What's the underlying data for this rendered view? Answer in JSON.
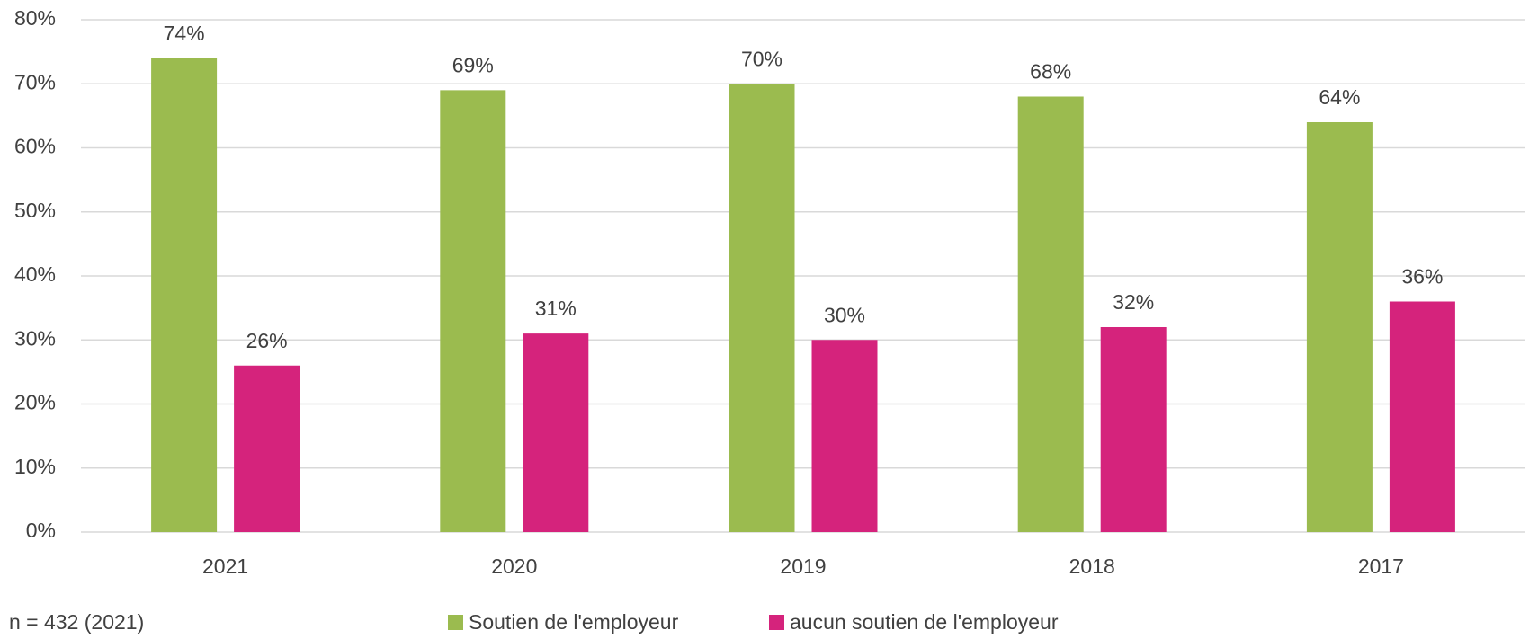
{
  "chart_data": {
    "type": "bar",
    "categories": [
      "2021",
      "2020",
      "2019",
      "2018",
      "2017"
    ],
    "series": [
      {
        "name": "Soutien de l'employeur",
        "color": "#9bbb4f",
        "values": [
          74,
          69,
          70,
          68,
          64
        ],
        "value_labels": [
          "74%",
          "69%",
          "70%",
          "68%",
          "64%"
        ]
      },
      {
        "name": "aucun soutien de l'employeur",
        "color": "#d5237c",
        "values": [
          26,
          31,
          30,
          32,
          36
        ],
        "value_labels": [
          "26%",
          "31%",
          "30%",
          "32%",
          "36%"
        ]
      }
    ],
    "ylim": [
      0,
      80
    ],
    "yticks": [
      {
        "value": 0,
        "label": "0%"
      },
      {
        "value": 10,
        "label": "10%"
      },
      {
        "value": 20,
        "label": "20%"
      },
      {
        "value": 30,
        "label": "30%"
      },
      {
        "value": 40,
        "label": "40%"
      },
      {
        "value": 50,
        "label": "50%"
      },
      {
        "value": 60,
        "label": "60%"
      },
      {
        "value": 70,
        "label": "70%"
      },
      {
        "value": 80,
        "label": "80%"
      }
    ],
    "grid": true,
    "legend": "bottom",
    "note": "n = 432 (2021)"
  }
}
